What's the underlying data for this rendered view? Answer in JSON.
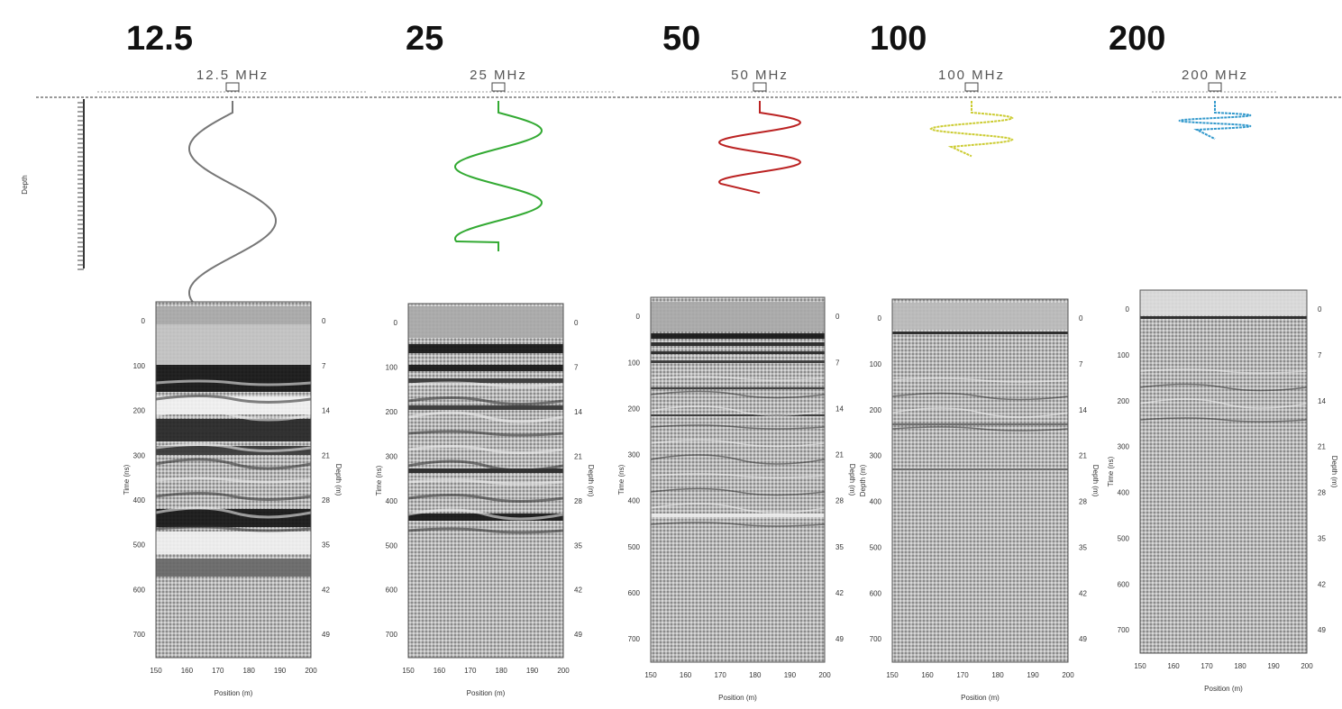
{
  "headings": [
    "12.5",
    "25",
    "50",
    "100",
    "200"
  ],
  "wavelet_labels": [
    "12.5 MHz",
    "25 MHz",
    "50 MHz",
    "100 MHz",
    "200 MHz"
  ],
  "depth_label": "Depth",
  "panels": [
    {
      "y_label": "Time (ns)",
      "y2_label": "Depth (m)",
      "x_label": "Position (m)",
      "y_ticks": [
        "0",
        "100",
        "200",
        "300",
        "400",
        "500",
        "600",
        "700"
      ],
      "y2_ticks": [
        "0",
        "7",
        "14",
        "21",
        "28",
        "35",
        "42",
        "49"
      ],
      "x_ticks": [
        "150",
        "160",
        "170",
        "180",
        "190",
        "200"
      ]
    },
    {
      "y_label": "Time (ns)",
      "y2_label": "Depth (m)",
      "x_label": "Position (m)",
      "y_ticks": [
        "0",
        "100",
        "200",
        "300",
        "400",
        "500",
        "600",
        "700"
      ],
      "y2_ticks": [
        "0",
        "7",
        "14",
        "21",
        "28",
        "35",
        "42",
        "49"
      ],
      "x_ticks": [
        "150",
        "160",
        "170",
        "180",
        "190",
        "200"
      ]
    },
    {
      "y_label": "Time (ns)",
      "y2_label": "Depth (m)",
      "x_label": "Position (m)",
      "y_ticks": [
        "0",
        "100",
        "200",
        "300",
        "400",
        "500",
        "600",
        "700"
      ],
      "y2_ticks": [
        "0",
        "7",
        "14",
        "21",
        "28",
        "35",
        "42",
        "49"
      ],
      "x_ticks": [
        "150",
        "160",
        "170",
        "180",
        "190",
        "200"
      ]
    },
    {
      "y_label": "Depth (m)",
      "y2_label": "Depth (m)",
      "x_label": "Position (m)",
      "y_ticks": [
        "0",
        "100",
        "200",
        "300",
        "400",
        "500",
        "600",
        "700"
      ],
      "y2_ticks": [
        "0",
        "7",
        "14",
        "21",
        "28",
        "35",
        "42",
        "49"
      ],
      "x_ticks": [
        "150",
        "160",
        "170",
        "180",
        "190",
        "200"
      ]
    },
    {
      "y_label": "Time (ns)",
      "y2_label": "Depth (m)",
      "x_label": "Position (m)",
      "y_ticks": [
        "0",
        "100",
        "200",
        "300",
        "400",
        "500",
        "600",
        "700"
      ],
      "y2_ticks": [
        "0",
        "7",
        "14",
        "21",
        "28",
        "35",
        "42",
        "49"
      ],
      "x_ticks": [
        "150",
        "160",
        "170",
        "180",
        "190",
        "200"
      ]
    }
  ]
}
